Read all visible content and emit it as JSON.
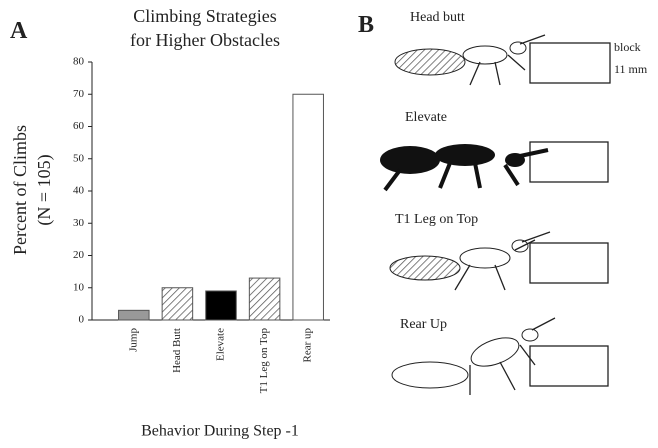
{
  "panel_a": {
    "label": "A"
  },
  "chart_data": {
    "type": "bar",
    "title": [
      "Climbing Strategies",
      "for Higher Obstacles"
    ],
    "y_label": [
      "Percent of Climbs",
      "(N = 105)"
    ],
    "x_label": "Behavior During Step -1",
    "categories": [
      "Jump",
      "Head Butt",
      "Elevate",
      "T1 Leg on Top",
      "Rear up"
    ],
    "values": [
      3,
      10,
      9,
      13,
      70
    ],
    "colors": [
      "#999999",
      "hatch",
      "#000000",
      "hatch",
      "#ffffff"
    ],
    "ylim": [
      0,
      80
    ],
    "yticks": [
      0,
      10,
      20,
      30,
      40,
      50,
      60,
      70,
      80
    ]
  },
  "panel_b": {
    "label": "B",
    "block_label": "block",
    "block_size": "11 mm",
    "images": [
      "Head butt",
      "Elevate",
      "T1 Leg on Top",
      "Rear Up"
    ]
  }
}
